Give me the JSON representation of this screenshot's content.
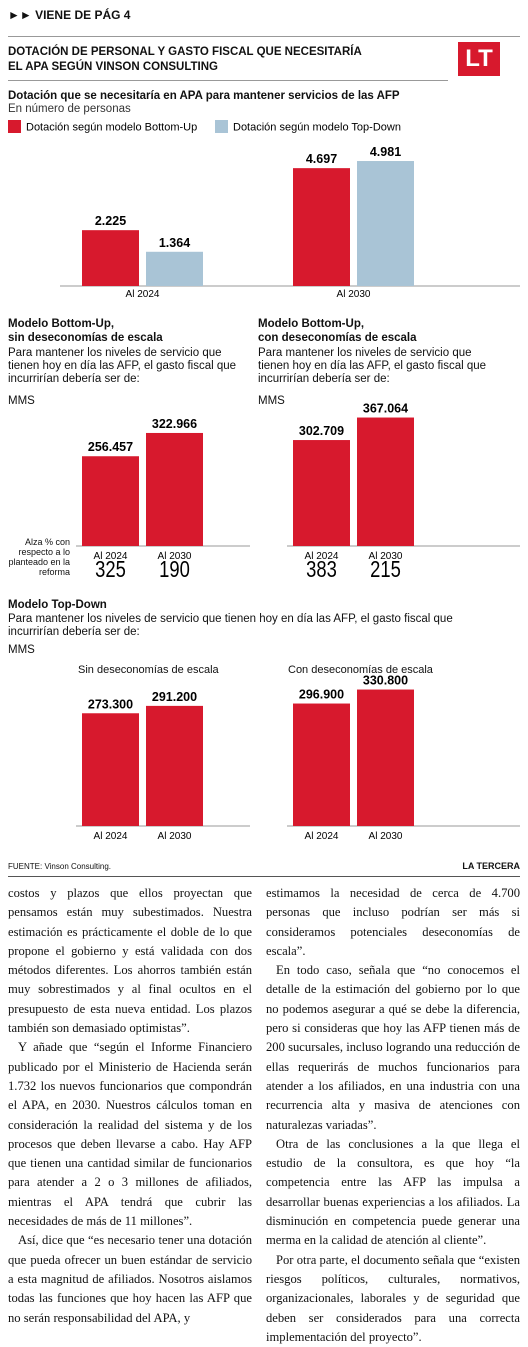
{
  "header": {
    "continued": "VIENE DE PÁG 4",
    "title": "DOTACIÓN DE PERSONAL Y GASTO FISCAL QUE NECESITARÍA EL APA SEGÚN VINSON CONSULTING",
    "logo": "LT"
  },
  "chart_data": [
    {
      "type": "bar",
      "title": "Dotación que se necesitaría en APA para mantener servicios de las AFP",
      "subtitle": "En número de personas",
      "categories": [
        "Al 2024",
        "Al 2030"
      ],
      "series": [
        {
          "name": "Dotación según modelo Bottom-Up",
          "color": "#d7192d",
          "values": [
            2225,
            4697
          ],
          "value_labels": [
            "2.225",
            "4.697"
          ]
        },
        {
          "name": "Dotación según modelo Top-Down",
          "color": "#a9c4d6",
          "values": [
            1364,
            4981
          ],
          "value_labels": [
            "1.364",
            "4.981"
          ]
        }
      ],
      "ylim": [
        0,
        5500
      ]
    },
    {
      "type": "bar",
      "title": [
        "Modelo Bottom-Up,",
        "sin deseconomías de escala"
      ],
      "subtitle": "Para mantener los niveles de servicio que tienen hoy en día las AFP, el gasto fiscal que incurrirían debería ser de:",
      "unit": "MMS",
      "categories": [
        "Al 2024",
        "Al 2030"
      ],
      "values": [
        256457,
        322966
      ],
      "value_labels": [
        "256.457",
        "322.966"
      ],
      "color": "#d7192d",
      "ylim": [
        0,
        400000
      ],
      "increase_label": "Alza % con respecto a lo planteado en la reforma",
      "increases": [
        325,
        190
      ]
    },
    {
      "type": "bar",
      "title": [
        "Modelo Bottom-Up,",
        "con deseconomías de escala"
      ],
      "subtitle": "Para mantener los niveles de servicio que tienen hoy en día las AFP, el gasto fiscal que incurrirían debería ser de:",
      "unit": "MMS",
      "categories": [
        "Al 2024",
        "Al 2030"
      ],
      "values": [
        302709,
        367064
      ],
      "value_labels": [
        "302.709",
        "367.064"
      ],
      "color": "#d7192d",
      "ylim": [
        0,
        400000
      ],
      "increases": [
        383,
        215
      ]
    },
    {
      "type": "bar",
      "title": "Sin deseconomías de escala",
      "categories": [
        "Al 2024",
        "Al 2030"
      ],
      "values": [
        273300,
        291200
      ],
      "value_labels": [
        "273.300",
        "291.200"
      ],
      "color": "#d7192d",
      "ylim": [
        0,
        400000
      ]
    },
    {
      "type": "bar",
      "title": "Con deseconomías de escala",
      "categories": [
        "Al 2024",
        "Al 2030"
      ],
      "values": [
        296900,
        330800
      ],
      "value_labels": [
        "296.900",
        "330.800"
      ],
      "color": "#d7192d",
      "ylim": [
        0,
        400000
      ]
    }
  ],
  "top_down": {
    "title": "Modelo Top-Down",
    "subtitle": "Para mantener los niveles de servicio que tienen hoy en día las AFP, el gasto fiscal que incurrirían debería ser de:",
    "unit": "MMS"
  },
  "footer": {
    "source": "FUENTE: Vinson Consulting.",
    "brand": "LA TERCERA"
  },
  "article": {
    "columns": [
      [
        "costos y plazos que ellos proyectan que pensamos están muy subestimados. Nuestra estimación es prácticamente el doble de lo que propone el gobierno y está validada con dos métodos diferentes. Los ahorros también están muy sobrestimados y al final ocultos en el presupuesto de esta nueva entidad. Los plazos también son demasiado optimistas”.",
        "Y añade que “según el Informe Financiero publicado por el Ministerio de Hacienda serán 1.732 los nuevos funcionarios que compondrán el APA, en 2030. Nuestros cálculos toman en consideración la realidad del sistema y de los procesos que deben llevarse a cabo. Hay AFP que tienen una cantidad similar de funcionarios para atender a 2 o 3 millones de afiliados, mientras el APA tendrá que cubrir las necesidades de más de 11 millones”.",
        "Así, dice que “es necesario tener una dotación que pueda ofrecer un buen estándar de servicio a esta magnitud de afiliados. Nosotros aislamos todas las funciones que hoy hacen las AFP que no serán responsabilidad del APA, y"
      ],
      [
        "estimamos la necesidad de cerca de 4.700 personas que incluso podrían ser más si consideramos potenciales deseconomías de escala”.",
        "En todo caso, señala que “no conocemos el detalle de la estimación del gobierno por lo que no podemos asegurar a qué se debe la diferencia, pero si consideras que hoy las AFP tienen más de 200 sucursales, incluso logrando una reducción de ellas requerirás de muchos funcionarios para atender a los afiliados, en una industria con una recurrencia alta y masiva de atenciones con naturalezas variadas”.",
        "Otra de las conclusiones a la que llega el estudio de la consultora, es que hoy “la competencia entre las AFP las impulsa a desarrollar buenas experiencias a los afiliados. La disminución en competencia puede generar una merma en la calidad de atención al cliente”.",
        "Por otra parte, el documento señala que “existen riesgos políticos, culturales, normativos, organizacionales, laborales y de seguridad que deben ser considerados para una correcta implementación del proyecto”."
      ]
    ]
  }
}
